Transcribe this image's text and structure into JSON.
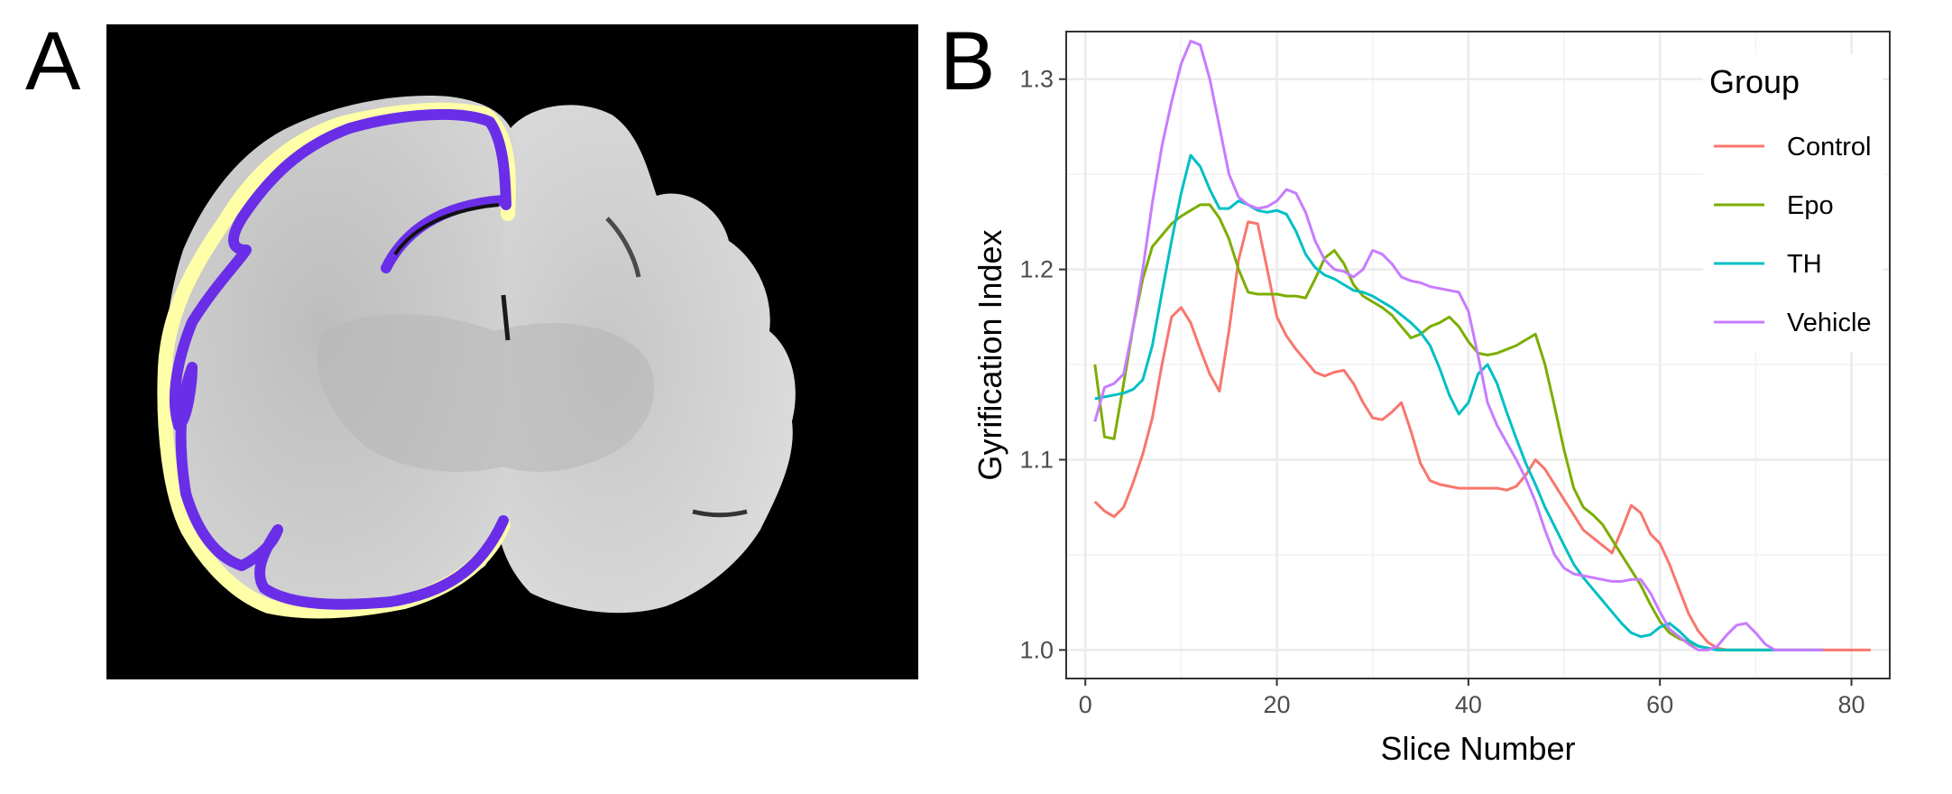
{
  "panels": {
    "a_label": "A",
    "b_label": "B"
  },
  "colors": {
    "Control": "#F8766D",
    "Epo": "#7CAE00",
    "TH": "#00BFC4",
    "Vehicle": "#C77CFF",
    "outline_yellow": "#FFFFA8",
    "outline_purple": "#6A2EE8",
    "grid": "#EBEBEB",
    "panel_border": "#333333"
  },
  "chart_data": {
    "type": "line",
    "title": "",
    "xlabel": "Slice Number",
    "ylabel": "Gyrification Index",
    "xlim": [
      -2,
      84
    ],
    "ylim": [
      0.985,
      1.325
    ],
    "xticks": [
      0,
      20,
      40,
      60,
      80
    ],
    "yticks": [
      1.0,
      1.1,
      1.2,
      1.3
    ],
    "xtick_labels": [
      "0",
      "20",
      "40",
      "60",
      "80"
    ],
    "ytick_labels": [
      "1.0",
      "1.1",
      "1.2",
      "1.3"
    ],
    "grid": true,
    "legend": {
      "title": "Group",
      "position": "top-right"
    },
    "series": [
      {
        "name": "Control",
        "color": "#F8766D",
        "x": [
          1,
          2,
          3,
          4,
          5,
          6,
          7,
          8,
          9,
          10,
          11,
          12,
          13,
          14,
          15,
          16,
          17,
          18,
          19,
          20,
          21,
          22,
          23,
          24,
          25,
          26,
          27,
          28,
          29,
          30,
          31,
          32,
          33,
          34,
          35,
          36,
          37,
          38,
          39,
          40,
          41,
          42,
          43,
          44,
          45,
          46,
          47,
          48,
          49,
          50,
          51,
          52,
          53,
          54,
          55,
          56,
          57,
          58,
          59,
          60,
          61,
          62,
          63,
          64,
          65,
          66,
          67,
          68,
          69,
          70,
          71,
          72,
          73,
          74,
          75,
          76,
          77,
          78,
          79,
          80,
          81,
          82
        ],
        "y": [
          1.078,
          1.073,
          1.07,
          1.075,
          1.088,
          1.103,
          1.122,
          1.15,
          1.175,
          1.18,
          1.172,
          1.158,
          1.145,
          1.136,
          1.168,
          1.205,
          1.225,
          1.224,
          1.2,
          1.175,
          1.165,
          1.158,
          1.152,
          1.146,
          1.144,
          1.146,
          1.147,
          1.14,
          1.13,
          1.122,
          1.121,
          1.125,
          1.13,
          1.115,
          1.098,
          1.089,
          1.087,
          1.086,
          1.085,
          1.085,
          1.085,
          1.085,
          1.085,
          1.084,
          1.086,
          1.092,
          1.1,
          1.095,
          1.087,
          1.079,
          1.071,
          1.063,
          1.059,
          1.055,
          1.051,
          1.063,
          1.076,
          1.072,
          1.061,
          1.056,
          1.045,
          1.032,
          1.019,
          1.01,
          1.004,
          1.001,
          1.0,
          1.0,
          1.0,
          1.0,
          1.0,
          1.0,
          1.0,
          1.0,
          1.0,
          1.0,
          1.0,
          1.0,
          1.0,
          1.0,
          1.0,
          1.0
        ]
      },
      {
        "name": "Epo",
        "color": "#7CAE00",
        "x": [
          1,
          2,
          3,
          4,
          5,
          6,
          7,
          8,
          9,
          10,
          11,
          12,
          13,
          14,
          15,
          16,
          17,
          18,
          19,
          20,
          21,
          22,
          23,
          24,
          25,
          26,
          27,
          28,
          29,
          30,
          31,
          32,
          33,
          34,
          35,
          36,
          37,
          38,
          39,
          40,
          41,
          42,
          43,
          44,
          45,
          46,
          47,
          48,
          49,
          50,
          51,
          52,
          53,
          54,
          55,
          56,
          57,
          58,
          59,
          60,
          61,
          62,
          63,
          64,
          65,
          66,
          67,
          68,
          69,
          70,
          71,
          72,
          73,
          74,
          75,
          76,
          77
        ],
        "y": [
          1.15,
          1.112,
          1.111,
          1.14,
          1.17,
          1.195,
          1.212,
          1.218,
          1.224,
          1.228,
          1.231,
          1.234,
          1.234,
          1.227,
          1.216,
          1.2,
          1.188,
          1.187,
          1.187,
          1.187,
          1.186,
          1.186,
          1.185,
          1.195,
          1.206,
          1.21,
          1.203,
          1.192,
          1.186,
          1.183,
          1.18,
          1.176,
          1.17,
          1.164,
          1.166,
          1.17,
          1.172,
          1.175,
          1.17,
          1.162,
          1.156,
          1.155,
          1.156,
          1.158,
          1.16,
          1.163,
          1.166,
          1.15,
          1.128,
          1.105,
          1.085,
          1.075,
          1.071,
          1.066,
          1.058,
          1.05,
          1.042,
          1.034,
          1.024,
          1.015,
          1.009,
          1.006,
          1.004,
          1.002,
          1.001,
          1.0,
          1.0,
          1.0,
          1.0,
          1.0,
          1.0,
          1.0,
          1.0,
          1.0,
          1.0,
          1.0,
          1.0
        ]
      },
      {
        "name": "TH",
        "color": "#00BFC4",
        "x": [
          1,
          2,
          3,
          4,
          5,
          6,
          7,
          8,
          9,
          10,
          11,
          12,
          13,
          14,
          15,
          16,
          17,
          18,
          19,
          20,
          21,
          22,
          23,
          24,
          25,
          26,
          27,
          28,
          29,
          30,
          31,
          32,
          33,
          34,
          35,
          36,
          37,
          38,
          39,
          40,
          41,
          42,
          43,
          44,
          45,
          46,
          47,
          48,
          49,
          50,
          51,
          52,
          53,
          54,
          55,
          56,
          57,
          58,
          59,
          60,
          61,
          62,
          63,
          64,
          65,
          66,
          67,
          68,
          69,
          70,
          71,
          72,
          73,
          74,
          75,
          76,
          77
        ],
        "y": [
          1.132,
          1.133,
          1.134,
          1.135,
          1.137,
          1.142,
          1.16,
          1.188,
          1.215,
          1.24,
          1.26,
          1.254,
          1.242,
          1.232,
          1.232,
          1.236,
          1.234,
          1.231,
          1.23,
          1.231,
          1.229,
          1.22,
          1.208,
          1.201,
          1.197,
          1.195,
          1.192,
          1.189,
          1.188,
          1.186,
          1.183,
          1.18,
          1.176,
          1.172,
          1.167,
          1.16,
          1.148,
          1.134,
          1.124,
          1.13,
          1.145,
          1.15,
          1.14,
          1.125,
          1.111,
          1.098,
          1.087,
          1.075,
          1.065,
          1.055,
          1.045,
          1.038,
          1.032,
          1.026,
          1.02,
          1.014,
          1.009,
          1.007,
          1.008,
          1.012,
          1.014,
          1.01,
          1.005,
          1.002,
          1.001,
          1.0,
          1.0,
          1.0,
          1.0,
          1.0,
          1.0,
          1.0,
          1.0,
          1.0,
          1.0,
          1.0,
          1.0
        ]
      },
      {
        "name": "Vehicle",
        "color": "#C77CFF",
        "x": [
          1,
          2,
          3,
          4,
          5,
          6,
          7,
          8,
          9,
          10,
          11,
          12,
          13,
          14,
          15,
          16,
          17,
          18,
          19,
          20,
          21,
          22,
          23,
          24,
          25,
          26,
          27,
          28,
          29,
          30,
          31,
          32,
          33,
          34,
          35,
          36,
          37,
          38,
          39,
          40,
          41,
          42,
          43,
          44,
          45,
          46,
          47,
          48,
          49,
          50,
          51,
          52,
          53,
          54,
          55,
          56,
          57,
          58,
          59,
          60,
          61,
          62,
          63,
          64,
          65,
          66,
          67,
          68,
          69,
          70,
          71,
          72,
          73,
          74,
          75,
          76,
          77
        ],
        "y": [
          1.12,
          1.138,
          1.14,
          1.145,
          1.17,
          1.2,
          1.235,
          1.265,
          1.288,
          1.308,
          1.32,
          1.318,
          1.3,
          1.275,
          1.25,
          1.238,
          1.234,
          1.232,
          1.233,
          1.236,
          1.242,
          1.24,
          1.23,
          1.215,
          1.205,
          1.2,
          1.199,
          1.196,
          1.2,
          1.21,
          1.208,
          1.203,
          1.196,
          1.194,
          1.193,
          1.191,
          1.19,
          1.189,
          1.188,
          1.178,
          1.155,
          1.13,
          1.118,
          1.109,
          1.1,
          1.09,
          1.078,
          1.063,
          1.05,
          1.043,
          1.04,
          1.039,
          1.038,
          1.037,
          1.036,
          1.036,
          1.037,
          1.037,
          1.03,
          1.02,
          1.011,
          1.007,
          1.003,
          1.0,
          1.0,
          1.002,
          1.008,
          1.013,
          1.014,
          1.009,
          1.003,
          1.0,
          1.0,
          1.0,
          1.0,
          1.0,
          1.0
        ]
      }
    ]
  }
}
